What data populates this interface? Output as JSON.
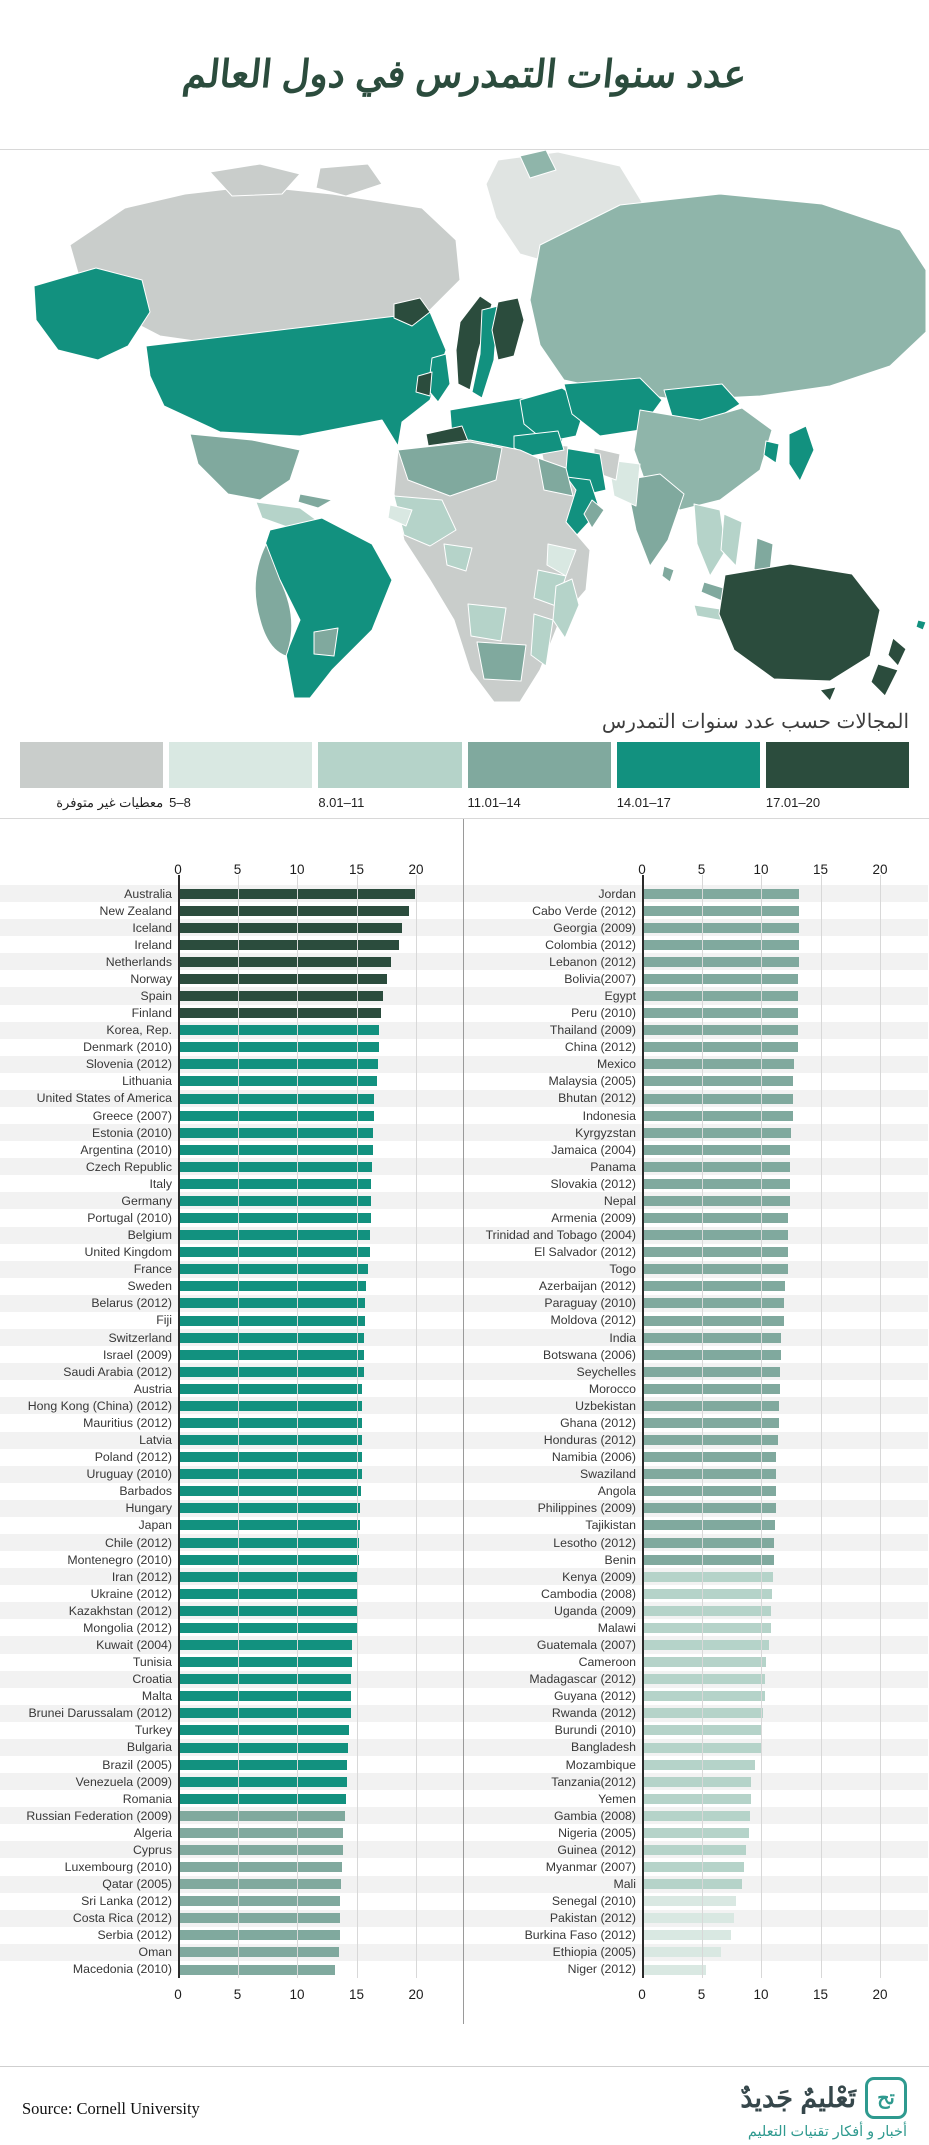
{
  "title": "عدد سنوات التمدرس في دول العالم",
  "legend": {
    "title": "المجالات حسب عدد سنوات التمدرس",
    "items": [
      {
        "label": "معطيات غير متوفرة",
        "color": "#c9cdcb",
        "range": "no-data"
      },
      {
        "label": "5–8",
        "color": "#d9e8e2",
        "range": "5-8"
      },
      {
        "label": "8.01–11",
        "color": "#b5d3c9",
        "range": "8.01-11"
      },
      {
        "label": "11.01–14",
        "color": "#80a99e",
        "range": "11.01-14"
      },
      {
        "label": "14.01–17",
        "color": "#12917f",
        "range": "14.01-17"
      },
      {
        "label": "17.01–20",
        "color": "#2b4c3d",
        "range": "17.01-20"
      }
    ]
  },
  "chart_data": [
    {
      "type": "bar",
      "orientation": "horizontal",
      "xlim": [
        0,
        20
      ],
      "ticks": [
        0,
        5,
        10,
        15,
        20
      ],
      "categories": [
        "Australia",
        "New Zealand",
        "Iceland",
        "Ireland",
        "Netherlands",
        "Norway",
        "Spain",
        "Finland",
        "Korea, Rep.",
        "Denmark (2010)",
        "Slovenia (2012)",
        "Lithuania",
        "United States of America",
        "Greece (2007)",
        "Estonia (2010)",
        "Argentina (2010)",
        "Czech Republic",
        "Italy",
        "Germany",
        "Portugal (2010)",
        "Belgium",
        "United Kingdom",
        "France",
        "Sweden",
        "Belarus (2012)",
        "Fiji",
        "Switzerland",
        "Israel (2009)",
        "Saudi Arabia (2012)",
        "Austria",
        "Hong Kong (China) (2012)",
        "Mauritius (2012)",
        "Latvia",
        "Poland (2012)",
        "Uruguay (2010)",
        "Barbados",
        "Hungary",
        "Japan",
        "Chile (2012)",
        "Montenegro (2010)",
        "Iran (2012)",
        "Ukraine (2012)",
        "Kazakhstan (2012)",
        "Mongolia (2012)",
        "Kuwait (2004)",
        "Tunisia",
        "Croatia",
        "Malta",
        "Brunei Darussalam (2012)",
        "Turkey",
        "Bulgaria",
        "Brazil (2005)",
        "Venezuela (2009)",
        "Romania",
        "Russian Federation (2009)",
        "Algeria",
        "Cyprus",
        "Luxembourg (2010)",
        "Qatar (2005)",
        "Sri Lanka (2012)",
        "Costa Rica (2012)",
        "Serbia (2012)",
        "Oman",
        "Macedonia (2010)"
      ],
      "values": [
        19.9,
        19.4,
        18.8,
        18.6,
        17.9,
        17.6,
        17.2,
        17.1,
        16.9,
        16.9,
        16.8,
        16.7,
        16.5,
        16.5,
        16.4,
        16.4,
        16.3,
        16.2,
        16.2,
        16.2,
        16.1,
        16.1,
        16.0,
        15.8,
        15.7,
        15.7,
        15.6,
        15.6,
        15.6,
        15.5,
        15.5,
        15.5,
        15.5,
        15.5,
        15.5,
        15.4,
        15.3,
        15.3,
        15.2,
        15.2,
        15.1,
        15.1,
        15.0,
        15.0,
        14.6,
        14.6,
        14.5,
        14.5,
        14.5,
        14.4,
        14.3,
        14.2,
        14.2,
        14.1,
        14.0,
        13.9,
        13.9,
        13.8,
        13.7,
        13.6,
        13.6,
        13.6,
        13.5,
        13.2
      ]
    },
    {
      "type": "bar",
      "orientation": "horizontal",
      "xlim": [
        0,
        20
      ],
      "ticks": [
        0,
        5,
        10,
        15,
        20
      ],
      "categories": [
        "Jordan",
        "Cabo Verde (2012)",
        "Georgia (2009)",
        "Colombia (2012)",
        "Lebanon (2012)",
        "Bolivia(2007)",
        "Egypt",
        "Peru (2010)",
        "Thailand (2009)",
        "China (2012)",
        "Mexico",
        "Malaysia (2005)",
        "Bhutan (2012)",
        "Indonesia",
        "Kyrgyzstan",
        "Jamaica (2004)",
        "Panama",
        "Slovakia (2012)",
        "Nepal",
        "Armenia (2009)",
        "Trinidad and Tobago (2004)",
        "El Salvador (2012)",
        "Togo",
        "Azerbaijan (2012)",
        "Paraguay (2010)",
        "Moldova (2012)",
        "India",
        "Botswana (2006)",
        "Seychelles",
        "Morocco",
        "Uzbekistan",
        "Ghana (2012)",
        "Honduras (2012)",
        "Namibia (2006)",
        "Swaziland",
        "Angola",
        "Philippines (2009)",
        "Tajikistan",
        "Lesotho (2012)",
        "Benin",
        "Kenya (2009)",
        "Cambodia (2008)",
        "Uganda (2009)",
        "Malawi",
        "Guatemala (2007)",
        "Cameroon",
        "Madagascar (2012)",
        "Guyana (2012)",
        "Rwanda (2012)",
        "Burundi (2010)",
        "Bangladesh",
        "Mozambique",
        "Tanzania(2012)",
        "Yemen",
        "Gambia (2008)",
        "Nigeria (2005)",
        "Guinea (2012)",
        "Myanmar (2007)",
        "Mali",
        "Senegal (2010)",
        "Pakistan (2012)",
        "Burkina Faso (2012)",
        "Ethiopia (2005)",
        "Niger (2012)"
      ],
      "values": [
        13.2,
        13.2,
        13.2,
        13.2,
        13.2,
        13.1,
        13.1,
        13.1,
        13.1,
        13.1,
        12.8,
        12.7,
        12.7,
        12.7,
        12.5,
        12.4,
        12.4,
        12.4,
        12.4,
        12.3,
        12.3,
        12.3,
        12.3,
        12.0,
        11.9,
        11.9,
        11.7,
        11.7,
        11.6,
        11.6,
        11.5,
        11.5,
        11.4,
        11.3,
        11.3,
        11.3,
        11.3,
        11.2,
        11.1,
        11.1,
        11.0,
        10.9,
        10.8,
        10.8,
        10.7,
        10.4,
        10.3,
        10.3,
        10.2,
        10.1,
        10.0,
        9.5,
        9.2,
        9.2,
        9.1,
        9.0,
        8.7,
        8.6,
        8.4,
        7.9,
        7.7,
        7.5,
        6.6,
        5.4
      ]
    }
  ],
  "footer": {
    "source": "Source: Cornell University",
    "logo_mark": "تح",
    "logo_title": "تَعْليمٌ جَديدٌ",
    "logo_subtitle": "أخبار و أفكار تقنيات التعليم"
  }
}
